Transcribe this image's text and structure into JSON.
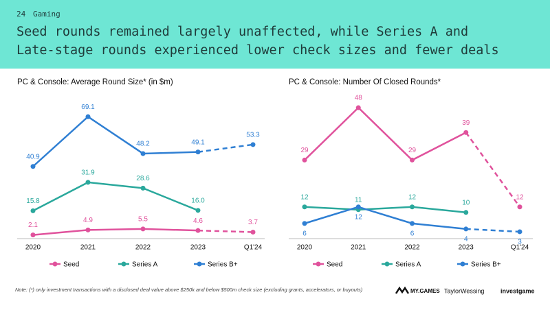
{
  "page": {
    "number": "24",
    "section": "Gaming",
    "headline": [
      "Seed rounds remained largely unaffected, while Series A and",
      "Late-stage rounds experienced lower check sizes and fewer deals"
    ],
    "note": "Note: (*) only investment transactions with a disclosed deal value above $250k and below $500m check size (excluding grants, accelerators, or buyouts)",
    "logos": [
      "MY.GAMES",
      "TaylorWessing",
      "investgame"
    ]
  },
  "chart_data": [
    {
      "type": "line",
      "title": "PC & Console: Average Round Size* (in $m)",
      "categories": [
        "2020",
        "2021",
        "2022",
        "2023",
        "Q1'24"
      ],
      "ylim": [
        0,
        75
      ],
      "dashed_last_segment": true,
      "series": [
        {
          "name": "Seed",
          "color": "#e0529c",
          "values": [
            2.1,
            4.9,
            5.5,
            4.6,
            3.7
          ],
          "value_labels": [
            "2.1",
            "4.9",
            "5.5",
            "4.6",
            "3.7"
          ],
          "label_position": "above"
        },
        {
          "name": "Series A",
          "color": "#2aa89c",
          "values": [
            15.8,
            31.9,
            28.6,
            16.0,
            null
          ],
          "value_labels": [
            "15.8",
            "31.9",
            "28.6",
            "16.0",
            null
          ],
          "label_position": "above"
        },
        {
          "name": "Series B+",
          "color": "#2f7fd3",
          "values": [
            40.9,
            69.1,
            48.2,
            49.1,
            53.3
          ],
          "value_labels": [
            "40.9",
            "69.1",
            "48.2",
            "49.1",
            "53.3"
          ],
          "label_position": "above"
        }
      ]
    },
    {
      "type": "line",
      "title": "PC & Console: Number Of Closed Rounds*",
      "categories": [
        "2020",
        "2021",
        "2022",
        "2023",
        "Q1'24"
      ],
      "ylim": [
        0,
        50
      ],
      "dashed_last_segment": true,
      "series": [
        {
          "name": "Seed",
          "color": "#e0529c",
          "values": [
            29,
            48,
            29,
            39,
            12
          ],
          "label_position": "above"
        },
        {
          "name": "Series A",
          "color": "#2aa89c",
          "values": [
            12,
            11,
            12,
            10,
            null
          ],
          "label_position": "above"
        },
        {
          "name": "Series B+",
          "color": "#2f7fd3",
          "values": [
            6,
            12,
            6,
            4,
            3
          ],
          "label_position": "below"
        }
      ]
    }
  ]
}
